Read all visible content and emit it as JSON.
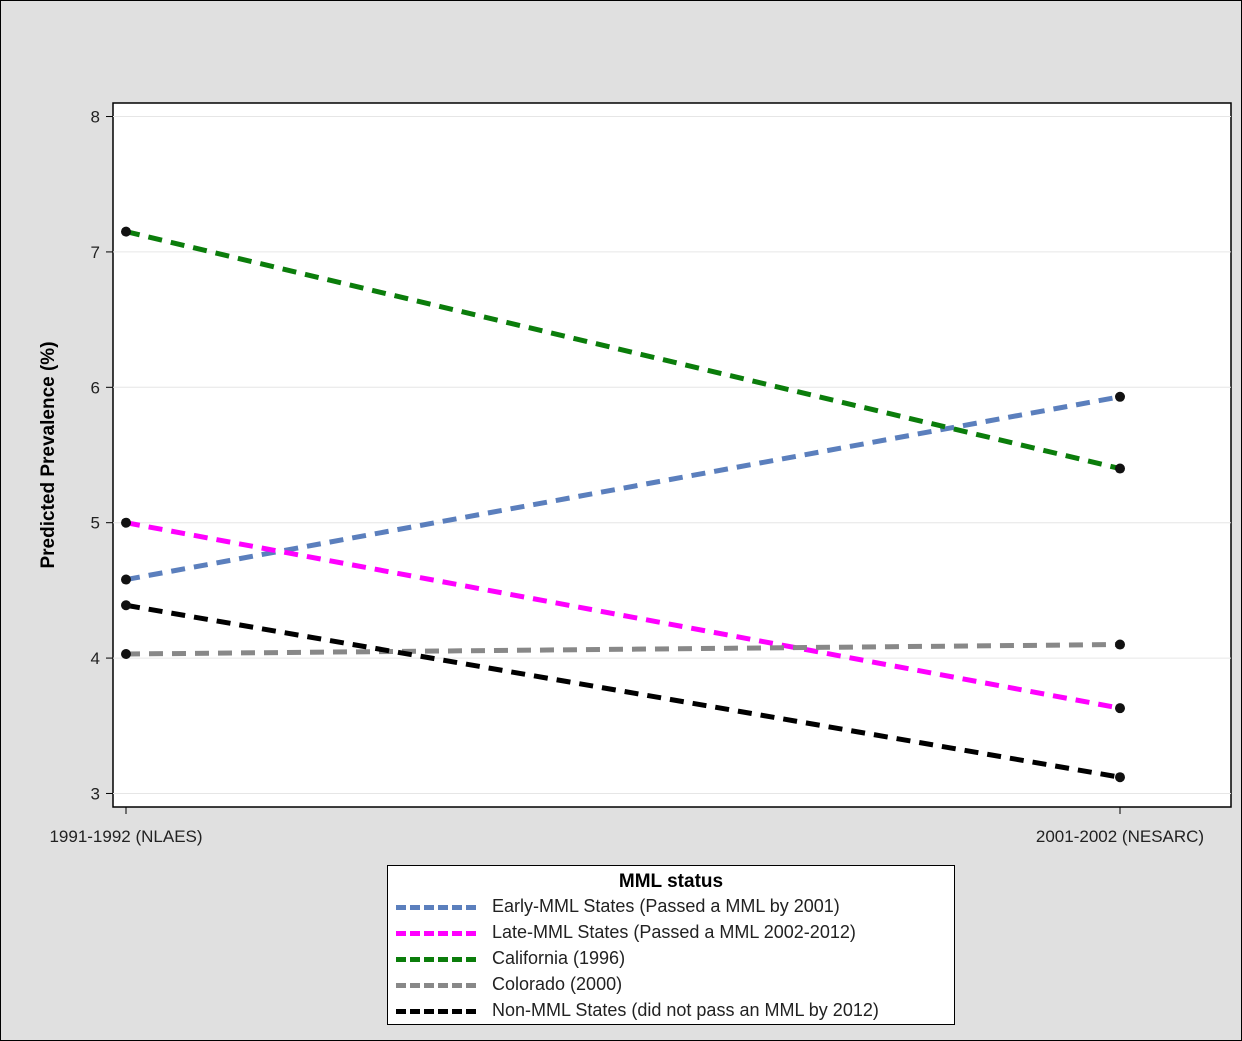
{
  "chart_data": {
    "type": "line",
    "title": "",
    "ylabel": "Predicted Prevalence (%)",
    "xlabel": "",
    "categories": [
      "1991-1992 (NLAES)",
      "2001-2002 (NESARC)"
    ],
    "ylim": [
      2.9,
      8.1
    ],
    "yticks": [
      3,
      4,
      5,
      6,
      7,
      8
    ],
    "grid": true,
    "legend": {
      "title": "MML status",
      "position": "bottom-center"
    },
    "series": [
      {
        "name": "Early-MML States (Passed a MML by 2001)",
        "values": [
          4.58,
          5.93
        ],
        "color": "#5b7fbd"
      },
      {
        "name": "Late-MML States (Passed a MML 2002-2012)",
        "values": [
          5.0,
          3.63
        ],
        "color": "#ff00ff"
      },
      {
        "name": "California (1996)",
        "values": [
          7.15,
          5.4
        ],
        "color": "#0b7d0b"
      },
      {
        "name": "Colorado (2000)",
        "values": [
          4.03,
          4.1
        ],
        "color": "#888888"
      },
      {
        "name": "Non-MML States (did not pass an MML by 2012)",
        "values": [
          4.39,
          3.12
        ],
        "color": "#000000"
      }
    ]
  }
}
